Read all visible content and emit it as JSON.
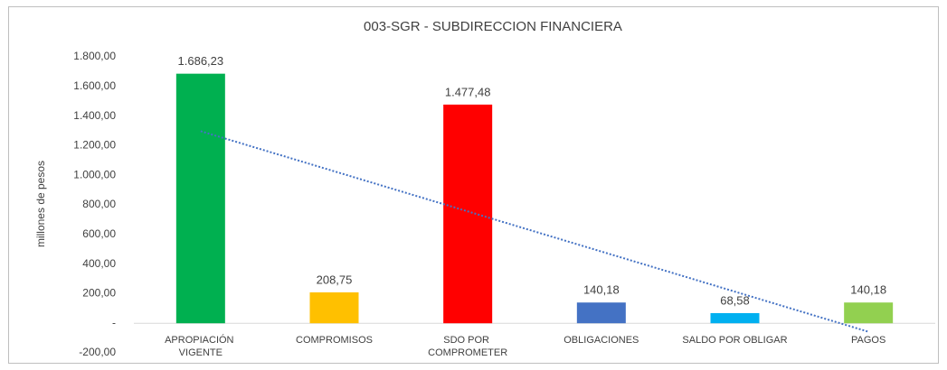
{
  "chart_data": {
    "type": "bar",
    "title": "003-SGR - SUBDIRECCION FINANCIERA",
    "y_label": "millones de pesos",
    "categories": [
      "APROPIACIÓN VIGENTE",
      "COMPROMISOS",
      "SDO POR COMPROMETER",
      "OBLIGACIONES",
      "SALDO POR OBLIGAR",
      "PAGOS"
    ],
    "values": [
      1686.23,
      208.75,
      1477.48,
      140.18,
      68.58,
      140.18
    ],
    "value_labels": [
      "1.686,23",
      "208,75",
      "1.477,48",
      "140,18",
      "68,58",
      "140,18"
    ],
    "colors": [
      "#00b050",
      "#ffc000",
      "#ff0000",
      "#4472c4",
      "#00b0f0",
      "#92d050"
    ],
    "ylim": [
      -200,
      1800
    ],
    "yticks": [
      {
        "value": -200,
        "label": "-200,00"
      },
      {
        "value": 0,
        "label": "-"
      },
      {
        "value": 200,
        "label": "200,00"
      },
      {
        "value": 400,
        "label": "400,00"
      },
      {
        "value": 600,
        "label": "600,00"
      },
      {
        "value": 800,
        "label": "800,00"
      },
      {
        "value": 1000,
        "label": "1.000,00"
      },
      {
        "value": 1200,
        "label": "1.200,00"
      },
      {
        "value": 1400,
        "label": "1.400,00"
      },
      {
        "value": 1600,
        "label": "1.600,00"
      },
      {
        "value": 1800,
        "label": "1.800,00"
      }
    ],
    "grid": false,
    "trendline": "linear",
    "trendline_color": "#4472c4"
  }
}
